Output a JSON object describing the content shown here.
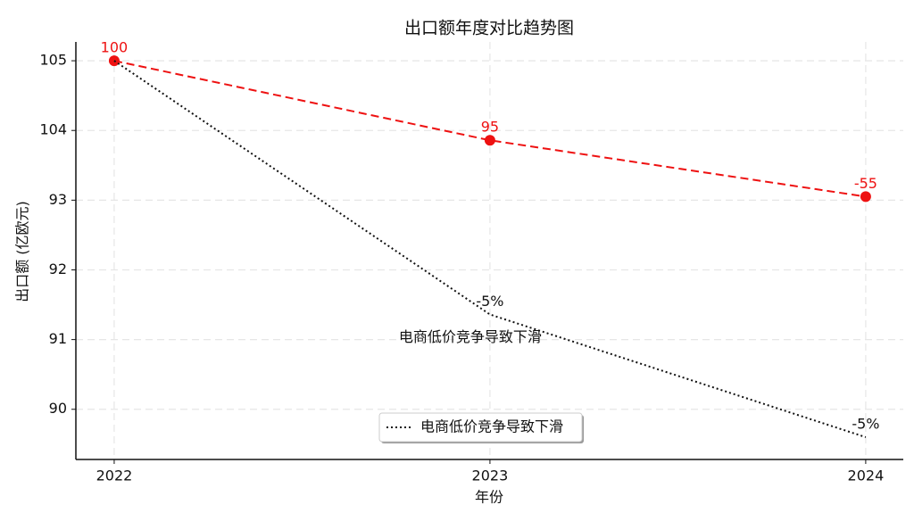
{
  "chart_data": {
    "type": "line",
    "title": "出口额年度对比趋势图",
    "xlabel": "年份",
    "ylabel": "出口额 (亿欧元)",
    "x": [
      2022,
      2023,
      2024
    ],
    "xlim": [
      2021.898,
      2024.1
    ],
    "xticks": [
      2022,
      2023,
      2024
    ],
    "ylim": [
      89.28,
      105.27
    ],
    "yticks": [
      90,
      91,
      92,
      93,
      104,
      105
    ],
    "grid": true,
    "legend": "lower center",
    "series": [
      {
        "color": "#ee1111",
        "style": "dashed",
        "marker": true,
        "values": [
          105,
          102.45,
          93.56
        ],
        "labels": [
          "100",
          "95",
          "-55"
        ]
      },
      {
        "name": "电商低价竞争导致下滑",
        "color": "#111111",
        "style": "dotted",
        "marker": false,
        "values": [
          105,
          91.36,
          89.6
        ],
        "labels": [
          null,
          "-5%",
          "-5%"
        ]
      }
    ],
    "annotation": {
      "text": "电商低价竞争导致下滑",
      "x": 2023,
      "y": 91
    }
  }
}
